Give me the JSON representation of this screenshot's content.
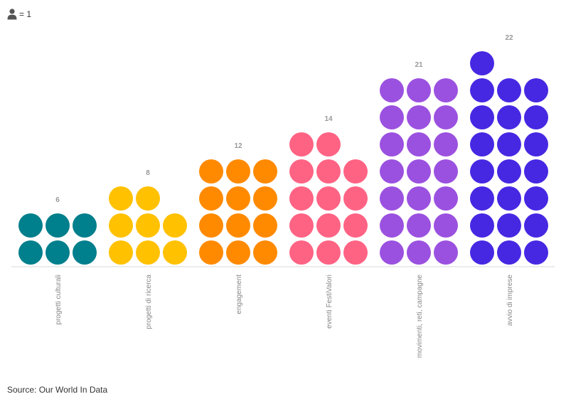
{
  "legend": {
    "icon": "person-icon",
    "label": "= 1"
  },
  "source": "Source: Our World In Data",
  "chart_data": {
    "type": "pictogram",
    "unit_value": 1,
    "categories": [
      "progetti culturali",
      "progetti di ricerca",
      "engagement",
      "eventi FestiValori",
      "movimenti, reti, campagne",
      "avvio di imprese"
    ],
    "values": [
      6,
      8,
      12,
      14,
      21,
      22
    ],
    "colors": [
      "#007f8c",
      "#ffc100",
      "#ff8a00",
      "#ff6384",
      "#9b51e0",
      "#4628e3"
    ],
    "data_labels": [
      "6",
      "8",
      "12",
      "14",
      "21",
      "22"
    ]
  }
}
